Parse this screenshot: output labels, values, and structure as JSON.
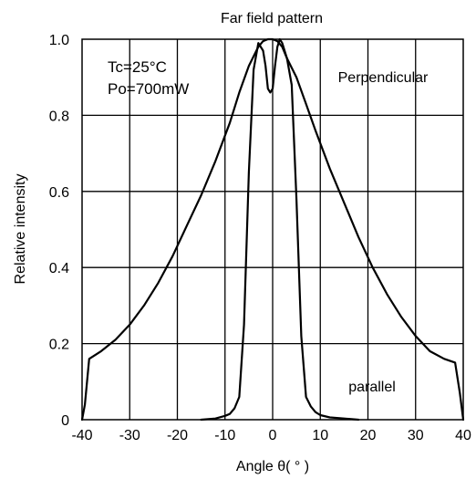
{
  "chart_data": {
    "type": "line",
    "title": "Far field pattern",
    "xlabel": "Angle θ( ° )",
    "ylabel": "Relative intensity",
    "xlim": [
      -40,
      40
    ],
    "ylim": [
      0,
      1.0
    ],
    "xticks": [
      -40,
      -30,
      -20,
      -10,
      0,
      10,
      20,
      30,
      40
    ],
    "xtick_labels": [
      "-40",
      "-30",
      "-20",
      "-10",
      "0",
      "10",
      "20",
      "30",
      "40"
    ],
    "yticks": [
      0,
      0.2,
      0.4,
      0.6,
      0.8,
      1.0
    ],
    "ytick_labels": [
      "0",
      "0.2",
      "0.4",
      "0.6",
      "0.8",
      "1.0"
    ],
    "grid": true,
    "annotations": {
      "condition_temp": "Tc=25°C",
      "condition_power": "Po=700mW"
    },
    "series": [
      {
        "name": "Perpendicular",
        "x": [
          -40,
          -39.4,
          -38.5,
          -36,
          -33,
          -30,
          -27,
          -24,
          -21,
          -18,
          -15,
          -12,
          -9,
          -7,
          -5,
          -3,
          -2,
          -1,
          0,
          1,
          2,
          3,
          5,
          7,
          9,
          12,
          15,
          18,
          21,
          24,
          27,
          30,
          33,
          36,
          38.3,
          39.3,
          40
        ],
        "y": [
          0,
          0.04,
          0.16,
          0.18,
          0.21,
          0.25,
          0.3,
          0.36,
          0.43,
          0.51,
          0.59,
          0.68,
          0.78,
          0.86,
          0.93,
          0.98,
          0.995,
          1.0,
          1.0,
          0.995,
          0.98,
          0.95,
          0.9,
          0.83,
          0.76,
          0.66,
          0.57,
          0.48,
          0.4,
          0.33,
          0.27,
          0.22,
          0.18,
          0.16,
          0.15,
          0.07,
          0
        ]
      },
      {
        "name": "parallel",
        "x": [
          -15,
          -12,
          -10,
          -9,
          -8,
          -7,
          -6,
          -5,
          -4,
          -3,
          -2,
          -1.5,
          -1,
          -0.5,
          0,
          0.5,
          1,
          1.5,
          2,
          3,
          4,
          5,
          6,
          7,
          8,
          9,
          10,
          12,
          15,
          18
        ],
        "y": [
          0,
          0.003,
          0.01,
          0.015,
          0.03,
          0.06,
          0.25,
          0.65,
          0.92,
          0.99,
          0.97,
          0.93,
          0.87,
          0.86,
          0.87,
          0.93,
          0.98,
          1.0,
          0.99,
          0.95,
          0.88,
          0.58,
          0.22,
          0.06,
          0.035,
          0.02,
          0.012,
          0.006,
          0.003,
          0
        ]
      }
    ]
  }
}
